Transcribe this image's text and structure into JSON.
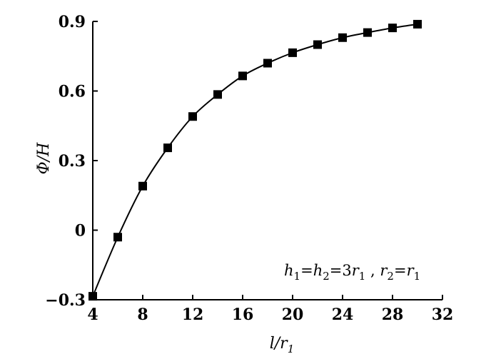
{
  "chart_data": {
    "type": "line",
    "title": "",
    "xlabel": "l/r",
    "xlabel_sub": "1",
    "ylabel": "Φ/H",
    "xlim": [
      4,
      32
    ],
    "ylim": [
      -0.3,
      0.9
    ],
    "xticks": [
      4,
      8,
      12,
      16,
      20,
      24,
      28,
      32
    ],
    "xtick_labels": [
      "4",
      "8",
      "12",
      "16",
      "20",
      "24",
      "28",
      "32"
    ],
    "yticks": [
      -0.3,
      0,
      0.3,
      0.6,
      0.9
    ],
    "ytick_labels": [
      "−0.3",
      "0",
      "0.3",
      "0.6",
      "0.9"
    ],
    "grid": false,
    "marker": "square",
    "color": "#000000",
    "annotation": {
      "h": "h",
      "s1": "1",
      "eq1": "=",
      "h2": "h",
      "s2": "2",
      "eq2": "=3",
      "r": "r",
      "s3": "1",
      "sep": " , ",
      "r2": "r",
      "s4": "2",
      "eq3": "=",
      "r3": "r",
      "s5": "1"
    },
    "series": [
      {
        "x": [
          4,
          6,
          8,
          10,
          12,
          14,
          16,
          18,
          20,
          22,
          24,
          26,
          28,
          30
        ],
        "values": [
          -0.285,
          -0.03,
          0.19,
          0.355,
          0.49,
          0.585,
          0.665,
          0.72,
          0.765,
          0.8,
          0.83,
          0.852,
          0.872,
          0.888
        ]
      }
    ]
  }
}
